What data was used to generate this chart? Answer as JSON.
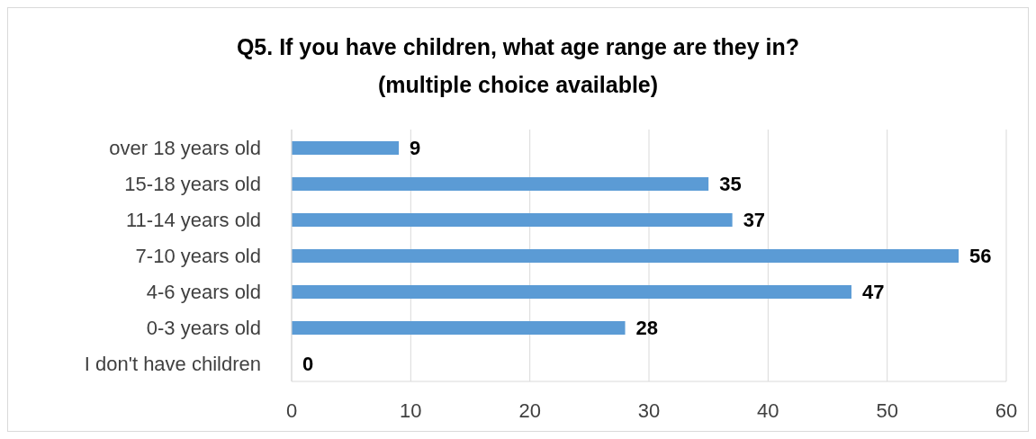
{
  "chart_data": {
    "type": "bar",
    "orientation": "horizontal",
    "title": "Q5. If you have children, what age range are they in?\n(multiple choice available)",
    "categories": [
      "over 18 years old",
      "15-18 years old",
      "11-14 years old",
      "7-10 years old",
      "4-6 years old",
      "0-3 years old",
      "I don't have children"
    ],
    "values": [
      9,
      35,
      37,
      56,
      47,
      28,
      0
    ],
    "color": "#5b9bd5",
    "xlim": [
      0,
      60
    ],
    "xticks": [
      0,
      10,
      20,
      30,
      40,
      50,
      60
    ],
    "grid": "x",
    "data_labels": true
  }
}
